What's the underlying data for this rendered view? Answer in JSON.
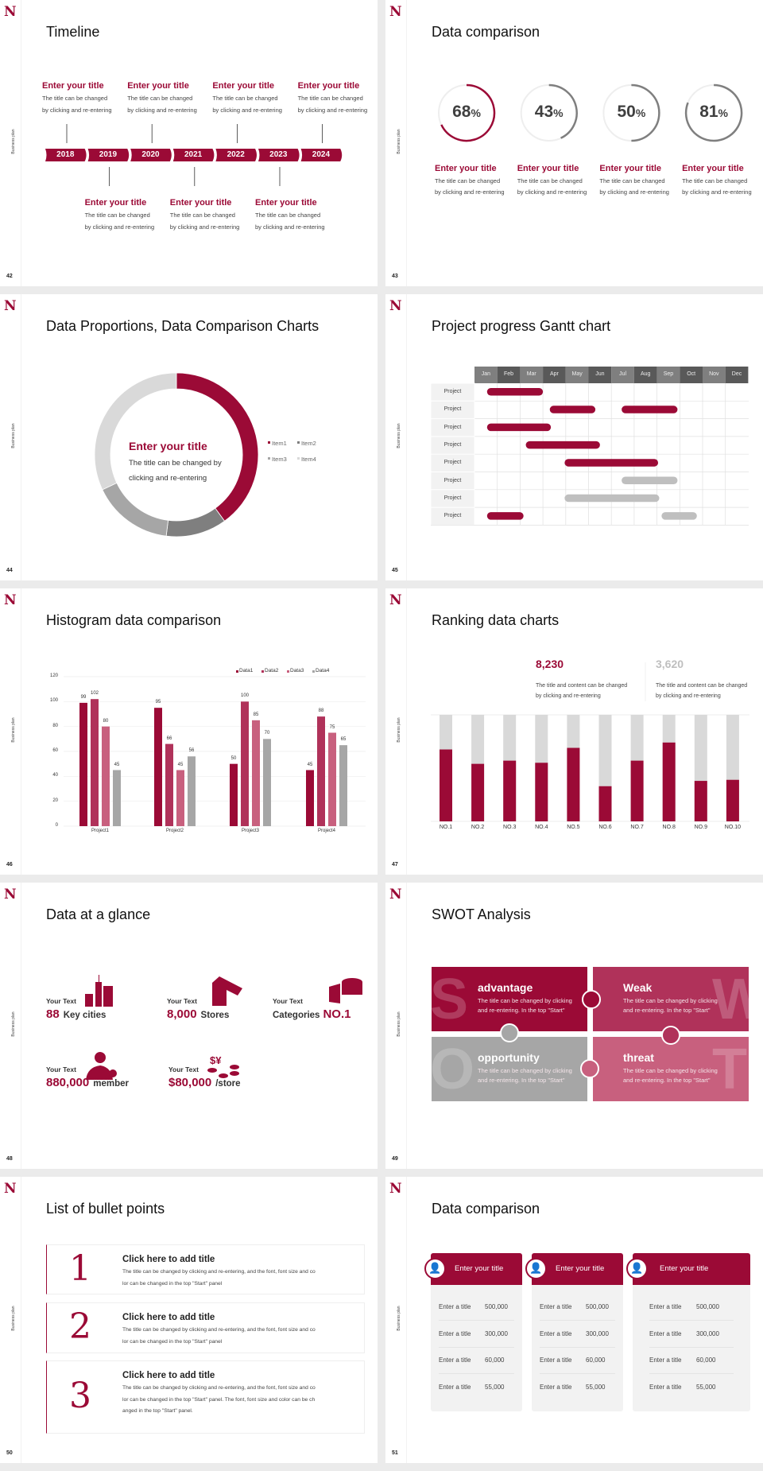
{
  "common": {
    "logo": "N",
    "side_label": "Business plan"
  },
  "colors": {
    "primary": "#9b0a36",
    "secondary": "#b0325a",
    "tertiary": "#c8607e",
    "gray": "#a6a6a6",
    "dark_gray": "#7f7f7f",
    "light_gray": "#d9d9d9"
  },
  "timeline": {
    "page": "42",
    "title": "Timeline",
    "years": [
      "2018",
      "2019",
      "2020",
      "2021",
      "2022",
      "2023",
      "2024"
    ],
    "events": [
      {
        "year": "2018",
        "position": "top",
        "title": "Enter your title",
        "desc1": "The title can be changed",
        "desc2": "by clicking and re-entering"
      },
      {
        "year": "2019",
        "position": "bottom",
        "title": "Enter your title",
        "desc1": "The title can be changed",
        "desc2": "by clicking and re-entering"
      },
      {
        "year": "2020",
        "position": "top",
        "title": "Enter your title",
        "desc1": "The title can be changed",
        "desc2": "by clicking and re-entering"
      },
      {
        "year": "2021",
        "position": "bottom",
        "title": "Enter your title",
        "desc1": "The title can be changed",
        "desc2": "by clicking and re-entering"
      },
      {
        "year": "2022",
        "position": "top",
        "title": "Enter your title",
        "desc1": "The title can be changed",
        "desc2": "by clicking and re-entering"
      },
      {
        "year": "2023",
        "position": "bottom",
        "title": "Enter your title",
        "desc1": "The title can be changed",
        "desc2": "by clicking and re-entering"
      },
      {
        "year": "2024",
        "position": "top",
        "title": "Enter your title",
        "desc1": "The title can be changed",
        "desc2": "by clicking and re-entering"
      }
    ]
  },
  "percent_compare": {
    "page": "43",
    "title": "Data comparison",
    "items": [
      {
        "value": 68,
        "number": "68",
        "unit": "%",
        "highlight": true,
        "title": "Enter your title",
        "desc1": "The title can be changed",
        "desc2": "by clicking and re-entering"
      },
      {
        "value": 43,
        "number": "43",
        "unit": "%",
        "highlight": false,
        "title": "Enter your title",
        "desc1": "The title can be changed",
        "desc2": "by clicking and re-entering"
      },
      {
        "value": 50,
        "number": "50",
        "unit": "%",
        "highlight": false,
        "title": "Enter your title",
        "desc1": "The title can be changed",
        "desc2": "by clicking and re-entering"
      },
      {
        "value": 81,
        "number": "81",
        "unit": "%",
        "highlight": false,
        "title": "Enter your title",
        "desc1": "The title can be changed",
        "desc2": "by clicking and re-entering"
      }
    ]
  },
  "proportions": {
    "page": "44",
    "title": "Data Proportions, Data Comparison Charts",
    "center_title": "Enter your title",
    "center_desc1": "The title can be changed by",
    "center_desc2": "clicking and re-entering"
  },
  "gantt": {
    "page": "45",
    "title": "Project progress Gantt chart"
  },
  "histogram": {
    "page": "46",
    "title": "Histogram data comparison"
  },
  "ranking": {
    "page": "47",
    "title": "Ranking data charts",
    "stats": [
      {
        "value": "8,230",
        "desc1": "The title and content can be changed",
        "desc2": "by clicking and re-entering"
      },
      {
        "value": "3,620",
        "desc1": "The title and content can be changed",
        "desc2": "by clicking and re-entering"
      }
    ]
  },
  "glance": {
    "page": "48",
    "title": "Data at a glance",
    "items": [
      {
        "label": "Your Text",
        "number": "88",
        "suffix": "Key cities",
        "icon": "city-buildings-icon"
      },
      {
        "label": "Your Text",
        "number": "8,000",
        "suffix": "Stores",
        "icon": "store-icon"
      },
      {
        "label": "Your Text",
        "prefix": "Categories",
        "number": "NO.1",
        "icon": "cheese-blocks-icon"
      },
      {
        "label": "Your Text",
        "number": "880,000",
        "suffix": "member",
        "icon": "add-member-icon"
      },
      {
        "label": "Your Text",
        "number": "$80,000",
        "suffix": "/store",
        "icon": "coins-currency-icon"
      }
    ]
  },
  "swot": {
    "page": "49",
    "title": "SWOT Analysis",
    "quadrants": [
      {
        "letter": "S",
        "title": "advantage",
        "desc1": "The title can be changed by clicking",
        "desc2": "and re-entering. In the top \"Start\"",
        "color": "#9b0a36"
      },
      {
        "letter": "W",
        "title": "Weak",
        "desc1": "The title can be changed by clicking",
        "desc2": "and re-entering. In the top \"Start\"",
        "color": "#b0325a"
      },
      {
        "letter": "O",
        "title": "opportunity",
        "desc1": "The title can be changed by clicking",
        "desc2": "and re-entering. In the top \"Start\"",
        "color": "#a6a6a6"
      },
      {
        "letter": "T",
        "title": "threat",
        "desc1": "The title can be changed by clicking",
        "desc2": "and re-entering. In the top \"Start\"",
        "color": "#c8607e"
      }
    ]
  },
  "bullets": {
    "page": "50",
    "title": "List of bullet points",
    "items": [
      {
        "number": "1",
        "title": "Click here to add title",
        "lines": [
          "The title can be changed by clicking and re-entering, and the font, font size and co",
          "lor can be changed in the top \"Start\" panel"
        ]
      },
      {
        "number": "2",
        "title": "Click here to add title",
        "lines": [
          "The title can be changed by clicking and re-entering, and the font, font size and co",
          "lor can be changed in the top \"Start\" panel"
        ]
      },
      {
        "number": "3",
        "title": "Click here to add title",
        "lines": [
          "The title can be changed by clicking and re-entering, and the font, font size and co",
          "lor can be changed in the top \"Start\" panel. The font, font size and color can be ch",
          "anged in the top \"Start\" panel."
        ]
      }
    ]
  },
  "cards": {
    "page": "51",
    "title": "Data comparison",
    "items": [
      {
        "title": "Enter your title",
        "icon": "contact-add-icon",
        "rows": [
          [
            "Enter a title",
            "500,000"
          ],
          [
            "Enter a title",
            "300,000"
          ],
          [
            "Enter a title",
            "60,000"
          ],
          [
            "Enter a title",
            "55,000"
          ]
        ]
      },
      {
        "title": "Enter your title",
        "icon": "user-add-icon",
        "rows": [
          [
            "Enter a title",
            "500,000"
          ],
          [
            "Enter a title",
            "300,000"
          ],
          [
            "Enter a title",
            "60,000"
          ],
          [
            "Enter a title",
            "55,000"
          ]
        ]
      },
      {
        "title": "Enter your title",
        "icon": "team-icon",
        "rows": [
          [
            "Enter a title",
            "500,000"
          ],
          [
            "Enter a title",
            "300,000"
          ],
          [
            "Enter a title",
            "60,000"
          ],
          [
            "Enter a title",
            "55,000"
          ]
        ]
      }
    ]
  },
  "chart_data": [
    {
      "type": "pie",
      "variant": "donut",
      "categories": [
        "Item1",
        "Item2",
        "Item3",
        "Item4"
      ],
      "values": [
        40,
        12,
        16,
        32
      ],
      "legend": "right"
    },
    {
      "type": "bar",
      "variant": "gantt",
      "categories": [
        "Jan",
        "Feb",
        "Mar",
        "Apr",
        "May",
        "Jun",
        "Jul",
        "Aug",
        "Sep",
        "Oct",
        "Nov",
        "Dec"
      ],
      "rows": [
        "Project",
        "Project",
        "Project",
        "Project",
        "Project",
        "Project",
        "Project",
        "Project"
      ],
      "tasks": [
        {
          "row": 0,
          "start": 0.55,
          "end": 3.0,
          "status": "active"
        },
        {
          "row": 1,
          "start": 3.3,
          "end": 5.3,
          "status": "active"
        },
        {
          "row": 1,
          "start": 6.45,
          "end": 8.9,
          "status": "active"
        },
        {
          "row": 2,
          "start": 0.55,
          "end": 3.35,
          "status": "active"
        },
        {
          "row": 3,
          "start": 2.25,
          "end": 5.5,
          "status": "active"
        },
        {
          "row": 4,
          "start": 3.95,
          "end": 8.05,
          "status": "active"
        },
        {
          "row": 5,
          "start": 6.45,
          "end": 8.9,
          "status": "planned"
        },
        {
          "row": 6,
          "start": 3.95,
          "end": 8.1,
          "status": "planned"
        },
        {
          "row": 7,
          "start": 0.55,
          "end": 2.15,
          "status": "active"
        },
        {
          "row": 7,
          "start": 8.2,
          "end": 9.75,
          "status": "planned"
        }
      ]
    },
    {
      "type": "bar",
      "categories": [
        "Project1",
        "Project2",
        "Project3",
        "Project4"
      ],
      "series": [
        {
          "name": "Data1",
          "values": [
            99,
            95,
            50,
            45
          ]
        },
        {
          "name": "Data2",
          "values": [
            102,
            66,
            100,
            88
          ]
        },
        {
          "name": "Data3",
          "values": [
            80,
            45,
            85,
            75
          ]
        },
        {
          "name": "Data4",
          "values": [
            45,
            56,
            70,
            65
          ]
        }
      ],
      "ylim": [
        0,
        120
      ],
      "yticks": [
        0,
        20,
        40,
        60,
        80,
        100,
        120
      ],
      "grid": true,
      "legend": "top-right",
      "data_labels": true
    },
    {
      "type": "bar",
      "variant": "stacked-percent",
      "categories": [
        "NO.1",
        "NO.2",
        "NO.3",
        "NO.4",
        "NO.5",
        "NO.6",
        "NO.7",
        "NO.8",
        "NO.9",
        "NO.10"
      ],
      "values": [
        67.5,
        54,
        57,
        55,
        69,
        33,
        57,
        74,
        38,
        39
      ],
      "ylim": [
        0,
        100
      ]
    }
  ]
}
